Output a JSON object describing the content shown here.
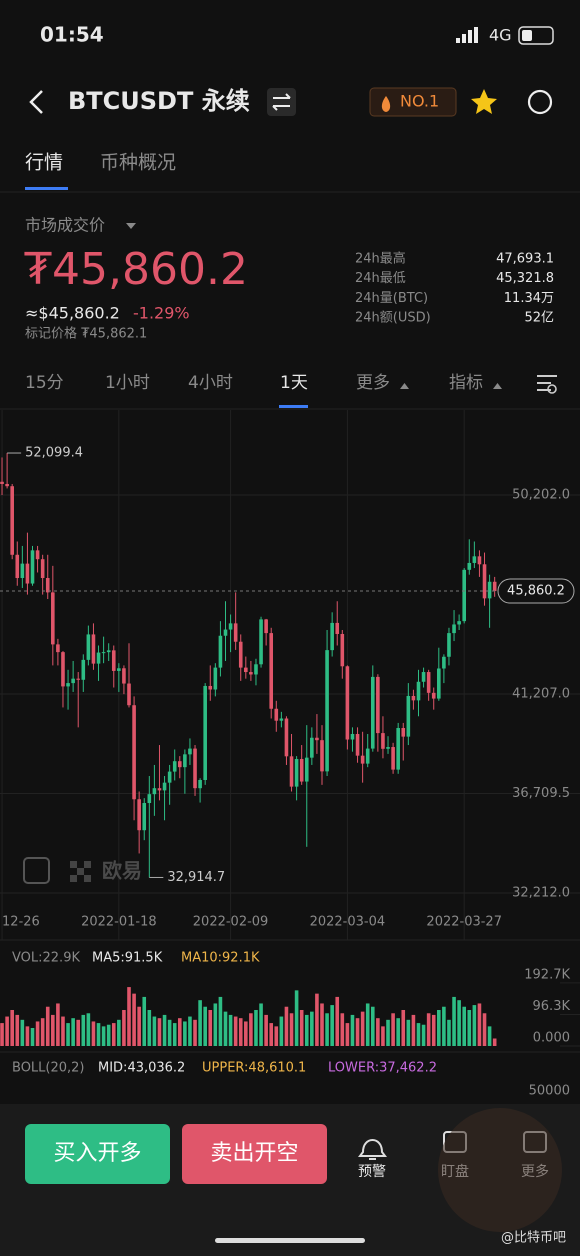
{
  "status": {
    "time": "01:54",
    "network": "4G"
  },
  "header": {
    "title": "BTCUSDT 永续",
    "badge": "NO.1"
  },
  "tabs": [
    "行情",
    "币种概况"
  ],
  "price": {
    "label": "市场成交价",
    "value": "₮45,860.2",
    "usd": "≈$45,860.2",
    "change": "-1.29%",
    "mark": "标记价格 ₮45,862.1"
  },
  "stats": [
    {
      "label": "24h最高",
      "value": "47,693.1"
    },
    {
      "label": "24h最低",
      "value": "45,321.8"
    },
    {
      "label": "24h量(BTC)",
      "value": "11.34万"
    },
    {
      "label": "24h额(USD)",
      "value": "52亿"
    }
  ],
  "intervals": [
    "15分",
    "1小时",
    "4小时",
    "1天",
    "更多",
    "指标"
  ],
  "chart_data": {
    "type": "candlestick",
    "up_color": "#2ebd85",
    "down_color": "#e0566a",
    "grid": true,
    "ylim": [
      31670,
      54044
    ],
    "xlim": [
      -0.4,
      113.8
    ],
    "yticks": [
      {
        "value": 50202,
        "label": "50,202.0"
      },
      {
        "value": 41207,
        "label": "41,207.0"
      },
      {
        "value": 36709.5,
        "label": "36,709.5"
      },
      {
        "value": 32212,
        "label": "32,212.0"
      }
    ],
    "xticks": [
      {
        "value": 0,
        "label": "12-26"
      },
      {
        "value": 23,
        "label": "2022-01-18"
      },
      {
        "value": 45,
        "label": "2022-02-09"
      },
      {
        "value": 68,
        "label": "2022-03-04"
      },
      {
        "value": 91,
        "label": "2022-03-27"
      }
    ],
    "high_label": {
      "value": 52099.4,
      "label": "52,099.4",
      "x": 1
    },
    "low_label": {
      "value": 32914.7,
      "label": "32,914.7",
      "x": 29
    },
    "last_label": {
      "value": 45860.2,
      "label": "45,860.2"
    },
    "brand": "欧易",
    "candles": [
      [
        50800,
        51900,
        50200,
        50700
      ],
      [
        50700,
        52099.4,
        50500,
        50600
      ],
      [
        50600,
        50700,
        47300,
        47500
      ],
      [
        47500,
        48100,
        46100,
        46450
      ],
      [
        46450,
        47900,
        46000,
        47100
      ],
      [
        47100,
        48500,
        45700,
        46200
      ],
      [
        46200,
        47900,
        46100,
        47700
      ],
      [
        47700,
        47900,
        46700,
        47300
      ],
      [
        47300,
        47500,
        45700,
        46450
      ],
      [
        46450,
        47500,
        45500,
        45800
      ],
      [
        45800,
        47000,
        42500,
        43450
      ],
      [
        43450,
        43700,
        42500,
        43100
      ],
      [
        43100,
        43150,
        40600,
        41550
      ],
      [
        41550,
        42300,
        40500,
        41700
      ],
      [
        41700,
        42700,
        41300,
        41900
      ],
      [
        41900,
        42200,
        39700,
        41850
      ],
      [
        41850,
        43000,
        41300,
        42750
      ],
      [
        42750,
        44300,
        42500,
        43900
      ],
      [
        43900,
        44400,
        42300,
        42580
      ],
      [
        42580,
        43400,
        41800,
        43080
      ],
      [
        43080,
        43800,
        42600,
        43100
      ],
      [
        43100,
        43500,
        42700,
        43180
      ],
      [
        43180,
        43400,
        41500,
        42250
      ],
      [
        42250,
        42600,
        41300,
        42370
      ],
      [
        42370,
        42500,
        41200,
        41680
      ],
      [
        41680,
        43500,
        40600,
        40700
      ],
      [
        40700,
        41100,
        35500,
        36450
      ],
      [
        36450,
        36800,
        34000,
        35050
      ],
      [
        35050,
        36500,
        34600,
        36280
      ],
      [
        36280,
        37500,
        32914.7,
        36680
      ],
      [
        36680,
        38000,
        35700,
        36950
      ],
      [
        36950,
        38900,
        36400,
        36850
      ],
      [
        36850,
        37500,
        35500,
        37200
      ],
      [
        37200,
        38000,
        36200,
        37700
      ],
      [
        37700,
        38700,
        37300,
        38170
      ],
      [
        38170,
        38400,
        37400,
        37900
      ],
      [
        37900,
        38700,
        36700,
        38480
      ],
      [
        38480,
        39200,
        38000,
        38740
      ],
      [
        38740,
        38900,
        36600,
        36950
      ],
      [
        36950,
        37400,
        36300,
        37320
      ],
      [
        37320,
        41700,
        37100,
        41570
      ],
      [
        41570,
        42500,
        40900,
        41410
      ],
      [
        41410,
        42600,
        41100,
        42400
      ],
      [
        42400,
        44500,
        42000,
        43840
      ],
      [
        43840,
        45400,
        42700,
        44120
      ],
      [
        44120,
        44800,
        43100,
        44400
      ],
      [
        44400,
        45800,
        43200,
        43570
      ],
      [
        43570,
        43900,
        41800,
        42400
      ],
      [
        42400,
        42900,
        41900,
        42200
      ],
      [
        42200,
        42700,
        41800,
        42090
      ],
      [
        42090,
        42800,
        41600,
        42550
      ],
      [
        42550,
        44700,
        42400,
        44580
      ],
      [
        44580,
        44600,
        43400,
        43960
      ],
      [
        43960,
        44200,
        40100,
        40540
      ],
      [
        40540,
        40900,
        39500,
        40000
      ],
      [
        40000,
        40400,
        39700,
        40100
      ],
      [
        40100,
        40200,
        38000,
        38390
      ],
      [
        38390,
        39400,
        36800,
        37020
      ],
      [
        37020,
        38400,
        36400,
        38270
      ],
      [
        38270,
        38900,
        37100,
        37250
      ],
      [
        37250,
        39800,
        34300,
        38330
      ],
      [
        38330,
        39700,
        38000,
        39230
      ],
      [
        39230,
        40300,
        38500,
        39120
      ],
      [
        39120,
        39800,
        37100,
        37710
      ],
      [
        37710,
        44100,
        37500,
        43190
      ],
      [
        43190,
        44900,
        42900,
        44420
      ],
      [
        44420,
        45400,
        43400,
        43920
      ],
      [
        43920,
        44100,
        41900,
        42460
      ],
      [
        42460,
        42500,
        38700,
        39150
      ],
      [
        39150,
        39700,
        38600,
        39400
      ],
      [
        39400,
        39700,
        38100,
        38420
      ],
      [
        38420,
        39500,
        37200,
        38060
      ],
      [
        38060,
        39400,
        37900,
        38740
      ],
      [
        38740,
        42500,
        38600,
        41980
      ],
      [
        41980,
        42100,
        38600,
        39440
      ],
      [
        39440,
        40200,
        38300,
        38730
      ],
      [
        38730,
        39300,
        38500,
        38810
      ],
      [
        38810,
        39000,
        37600,
        37790
      ],
      [
        37790,
        39900,
        37600,
        39670
      ],
      [
        39670,
        39900,
        38200,
        39280
      ],
      [
        39280,
        41700,
        38900,
        41120
      ],
      [
        41120,
        41400,
        40500,
        40920
      ],
      [
        40920,
        42300,
        40200,
        41760
      ],
      [
        41760,
        42400,
        41500,
        42200
      ],
      [
        42200,
        42300,
        40900,
        41260
      ],
      [
        41260,
        41500,
        40500,
        41000
      ],
      [
        41000,
        43300,
        40900,
        42360
      ],
      [
        42360,
        43000,
        41700,
        42890
      ],
      [
        42890,
        44200,
        42500,
        43960
      ],
      [
        43960,
        45000,
        43600,
        44350
      ],
      [
        44350,
        44800,
        44100,
        44500
      ],
      [
        44500,
        46900,
        44400,
        46820
      ],
      [
        46820,
        48200,
        46600,
        47130
      ],
      [
        47130,
        48100,
        46900,
        47430
      ],
      [
        47430,
        47700,
        46500,
        47070
      ],
      [
        47070,
        47600,
        45200,
        45530
      ],
      [
        45530,
        46600,
        44200,
        46280
      ],
      [
        46280,
        46500,
        45600,
        45860.2
      ]
    ]
  },
  "volume": {
    "label": "VOL:22.9K",
    "ma5": "MA5:91.5K",
    "ma10": "MA10:92.1K",
    "ylim": [
      0,
      220
    ],
    "yticks": [
      {
        "value": 192.7,
        "label": "192.7K"
      },
      {
        "value": 96.3,
        "label": "96.3K"
      },
      {
        "value": 0,
        "label": "0.000"
      }
    ],
    "values": [
      70,
      90,
      110,
      95,
      80,
      60,
      55,
      75,
      85,
      120,
      95,
      130,
      90,
      70,
      85,
      80,
      95,
      100,
      75,
      70,
      60,
      65,
      70,
      80,
      110,
      180,
      160,
      120,
      150,
      110,
      90,
      85,
      95,
      80,
      70,
      85,
      75,
      90,
      80,
      140,
      120,
      110,
      130,
      150,
      105,
      95,
      90,
      85,
      75,
      100,
      110,
      130,
      95,
      70,
      60,
      90,
      120,
      100,
      170,
      110,
      95,
      105,
      160,
      130,
      100,
      125,
      150,
      100,
      70,
      95,
      85,
      105,
      130,
      120,
      85,
      60,
      80,
      100,
      85,
      110,
      80,
      95,
      70,
      65,
      100,
      95,
      110,
      120,
      80,
      150,
      140,
      120,
      110,
      125,
      130,
      100,
      60,
      22.9
    ]
  },
  "boll": {
    "label": "BOLL(20,2)",
    "mid": "MID:43,036.2",
    "upper": "UPPER:48,610.1",
    "lower": "LOWER:37,462.2",
    "ytick": "50000"
  },
  "bottom": {
    "buy": "买入开多",
    "sell": "卖出开空",
    "alert": "预警",
    "watch": "盯盘",
    "more": "更多"
  },
  "watermark": "@比特币吧"
}
